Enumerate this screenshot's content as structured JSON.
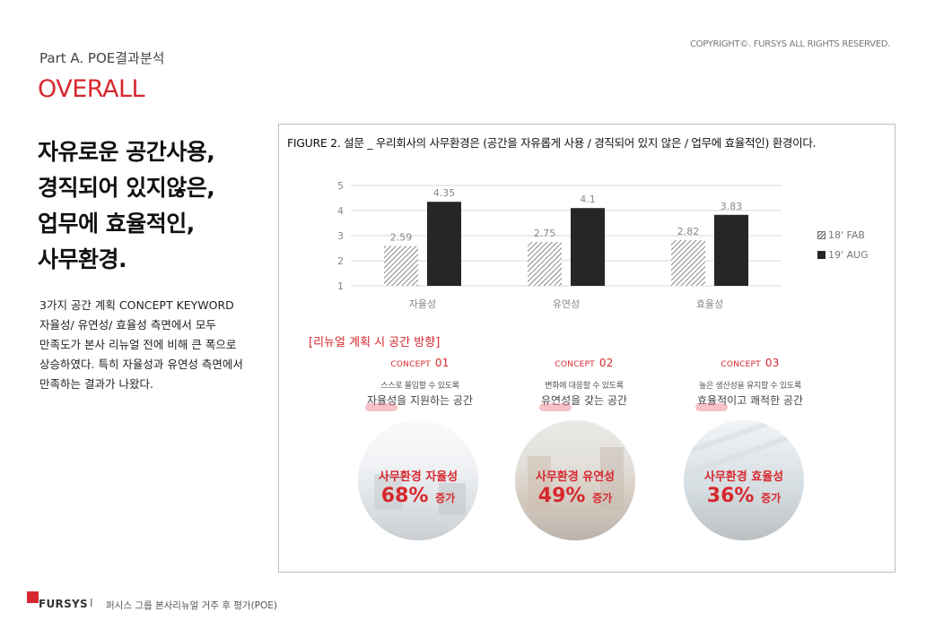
{
  "header": {
    "copyright": "COPYRIGHT©. FURSYS ALL RIGHTS RESERVED.",
    "part": "Part A. POE결과분석",
    "section": "OVERALL"
  },
  "headline": [
    "자유로운 공간사용,",
    "경직되어 있지않은,",
    "업무에 효율적인,",
    "사무환경."
  ],
  "description": [
    "3가지 공간 계획 CONCEPT KEYWORD",
    "자율성/ 유연성/ 효율성 측면에서 모두",
    "만족도가 본사 리뉴얼 전에 비해 큰 폭으로",
    "상승하였다. 특히 자율성과 유연성 측면에서",
    "만족하는 결과가 나왔다."
  ],
  "figure": {
    "title": "FIGURE 2. 설문 _ 우리회사의 사무환경은 (공간을 자유롭게 사용 / 경직되어 있지 않은 / 업무에 효율적인) 환경이다."
  },
  "chart_data": {
    "type": "bar",
    "categories": [
      "자율성",
      "유연성",
      "효율성"
    ],
    "series": [
      {
        "name": "18' FAB",
        "values": [
          2.59,
          2.75,
          2.82
        ],
        "labels": [
          "2.59",
          "2.75",
          "2.82"
        ],
        "pattern": "hatched"
      },
      {
        "name": "19' AUG",
        "values": [
          4.35,
          4.1,
          3.83
        ],
        "labels": [
          "4.35",
          "4.1",
          "3.83"
        ],
        "color": "#262626"
      }
    ],
    "ylim": [
      1,
      5
    ],
    "yticks": [
      "1",
      "2",
      "3",
      "4",
      "5"
    ],
    "grid": true,
    "legend": "right"
  },
  "direction_label": "[리뉴얼 계획 시 공간 방향]",
  "concepts": [
    {
      "label": "CONCEPT",
      "num": "01",
      "sub": "스스로 몰입할 수 있도록",
      "main": "자율성을 지원하는 공간",
      "circle_title": "사무환경 자율성",
      "percent": "68%",
      "suffix": "증가"
    },
    {
      "label": "CONCEPT",
      "num": "02",
      "sub": "변화에 대응할 수 있도록",
      "main": "유연성을 갖는 공간",
      "circle_title": "사무환경 유연성",
      "percent": "49%",
      "suffix": "증가"
    },
    {
      "label": "CONCEPT",
      "num": "03",
      "sub": "높은 생산성을 유지할 수 있도록",
      "main": "효율적이고 쾌적한 공간",
      "circle_title": "사무환경 효율성",
      "percent": "36%",
      "suffix": "증가"
    }
  ],
  "footer": {
    "logo": "FURSYS",
    "separator": "I",
    "text": "퍼시스 그룹 본사리뉴얼 거주 후 평가(POE)"
  },
  "colors": {
    "accent": "#d7282f",
    "bar_dark": "#262626"
  }
}
